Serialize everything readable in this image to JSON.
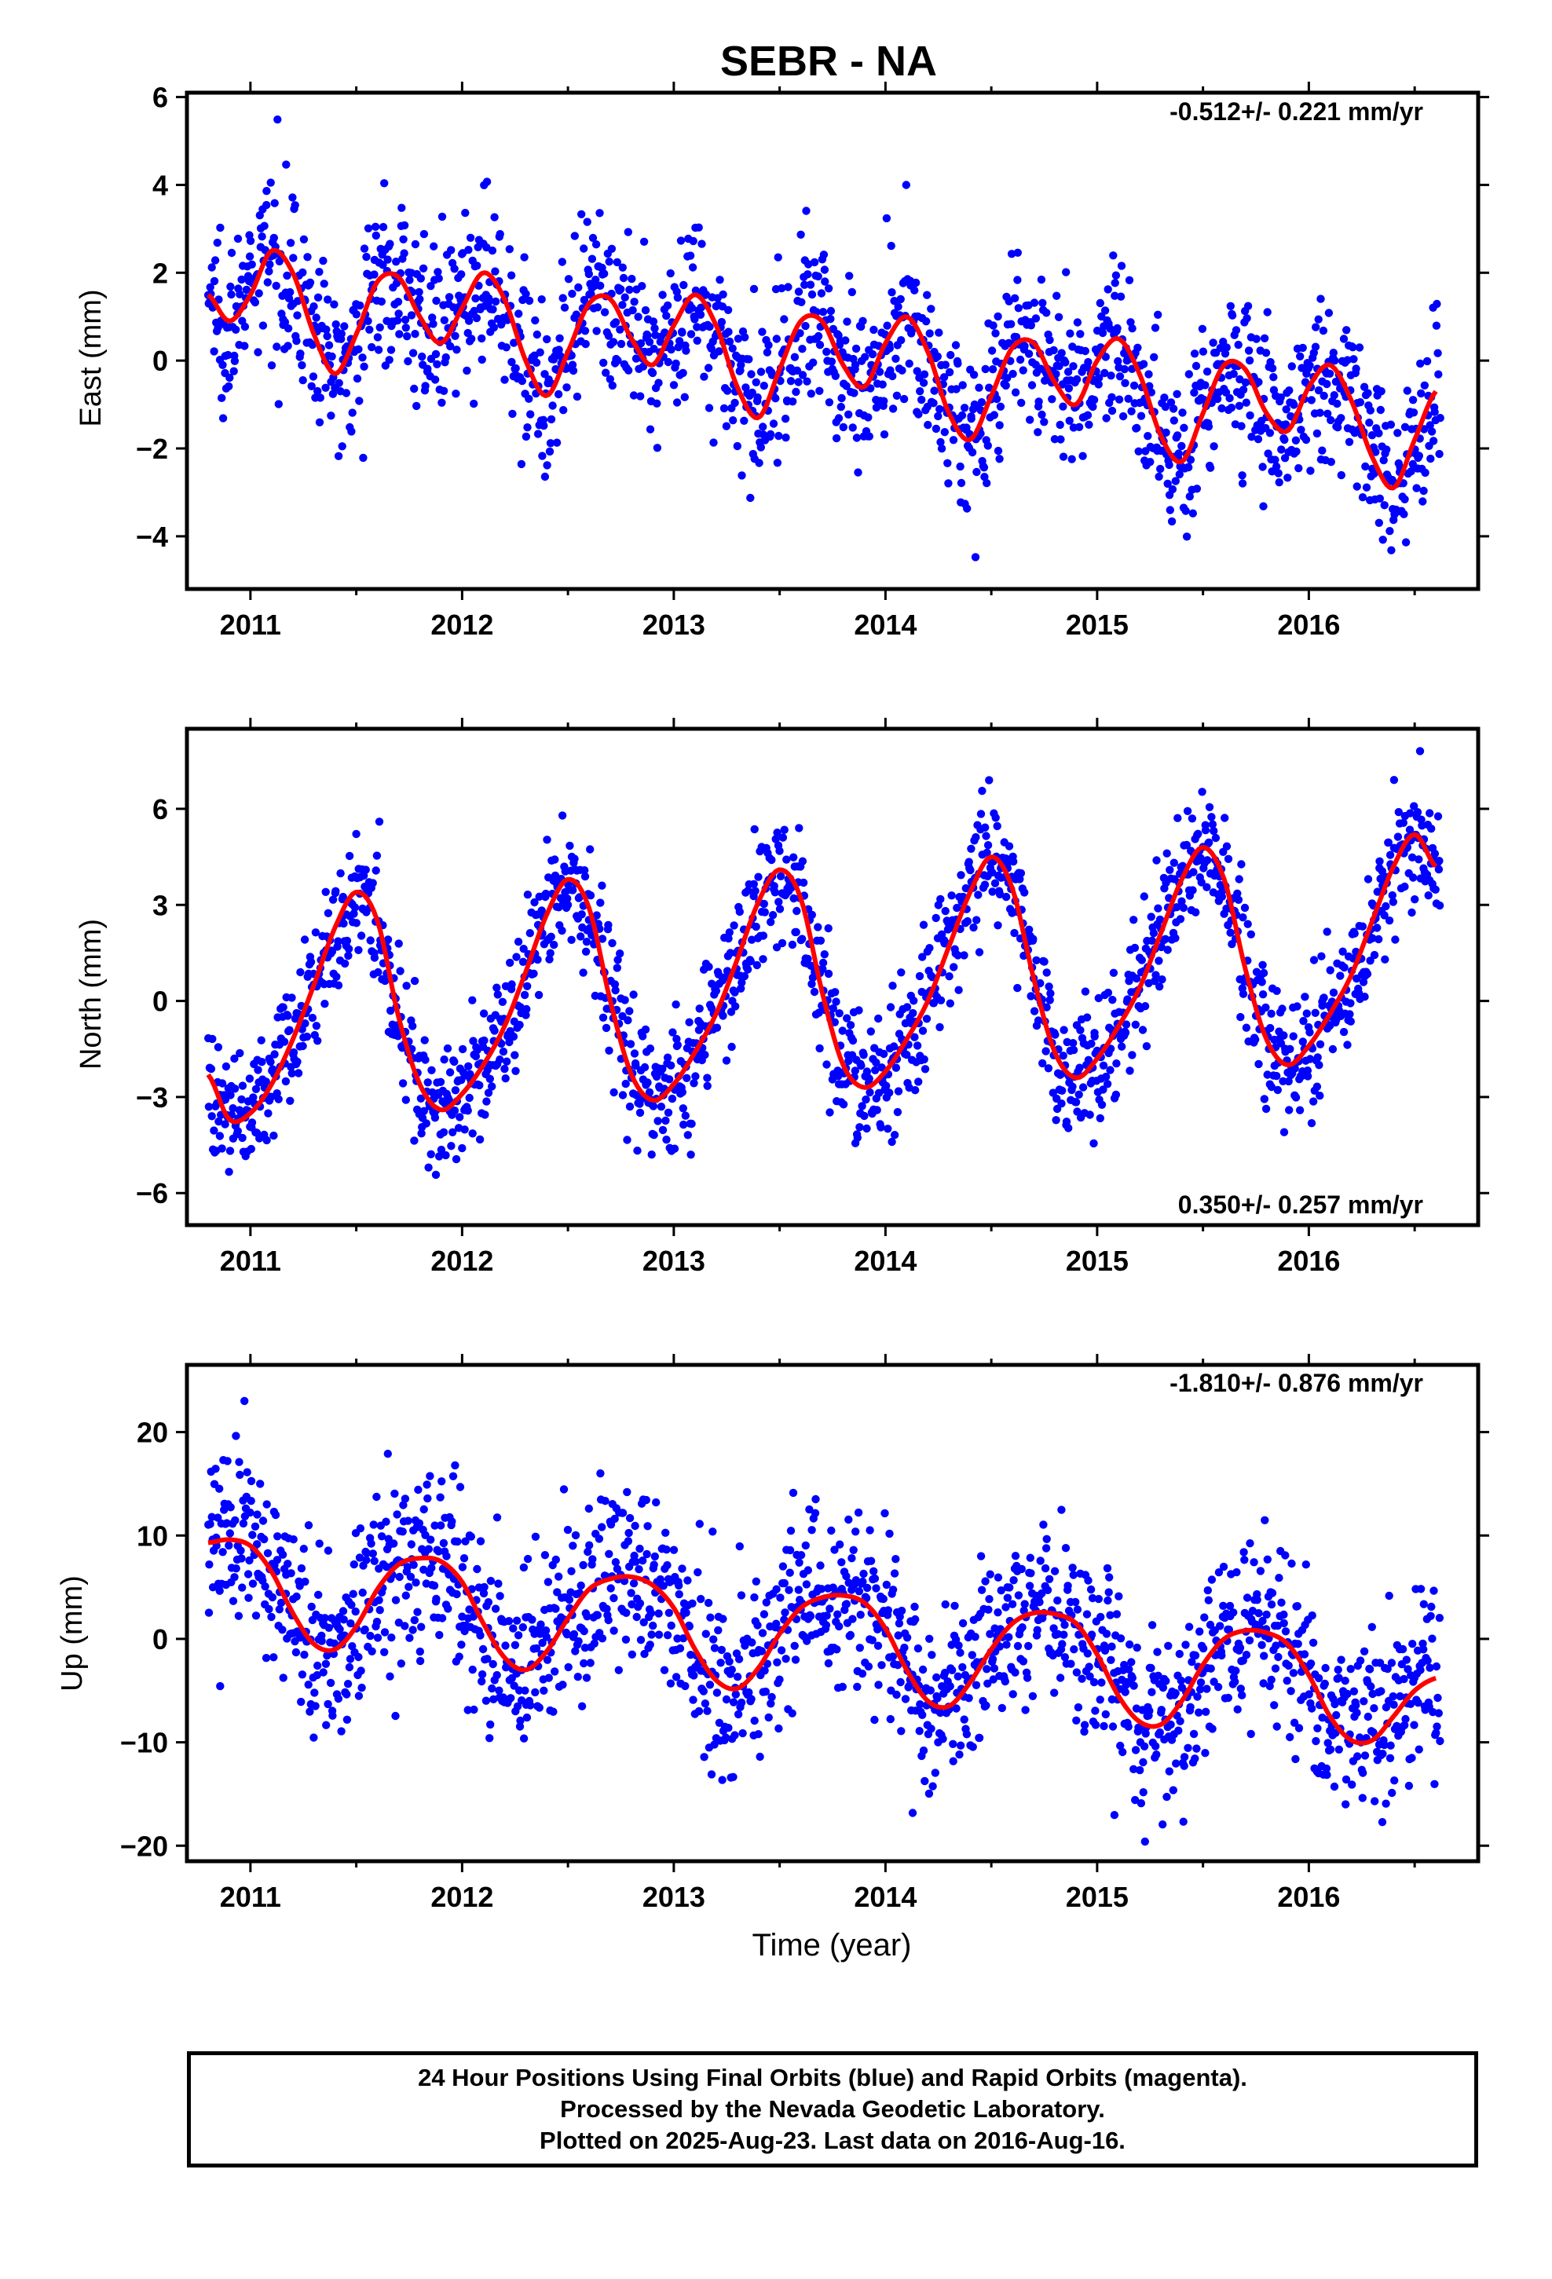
{
  "title": "SEBR - NA",
  "xlabel": "Time (year)",
  "footer": {
    "line1": "24 Hour Positions Using Final Orbits (blue) and Rapid Orbits (magenta).",
    "line2": "Processed by the Nevada Geodetic Laboratory.",
    "line3": "Plotted on 2025-Aug-23. Last data on 2016-Aug-16."
  },
  "colors": {
    "points": "#0000ff",
    "fit": "#ff0000",
    "axes": "#000000"
  },
  "chart_data": [
    {
      "type": "scatter",
      "component": "east",
      "ylabel": "East (mm)",
      "rate_label": "-0.512+/- 0.221 mm/yr",
      "rate_position": "top-right",
      "xlim": [
        2010.7,
        2016.8
      ],
      "ylim": [
        -5.2,
        6.1
      ],
      "x_ticks": [
        "2011",
        "2012",
        "2013",
        "2014",
        "2015",
        "2016"
      ],
      "y_ticks": [
        -4,
        -2,
        0,
        2,
        4,
        6
      ],
      "y_tick_labels": [
        "−4",
        "−2",
        "0",
        "2",
        "4",
        "6"
      ],
      "time_span": [
        2010.8,
        2016.62
      ],
      "fit_curve": {
        "x": [
          2010.8,
          2010.9,
          2011.0,
          2011.1,
          2011.2,
          2011.3,
          2011.4,
          2011.5,
          2011.6,
          2011.7,
          2011.8,
          2011.9,
          2012.0,
          2012.1,
          2012.2,
          2012.3,
          2012.4,
          2012.5,
          2012.6,
          2012.7,
          2012.8,
          2012.9,
          2013.0,
          2013.1,
          2013.2,
          2013.3,
          2013.4,
          2013.5,
          2013.6,
          2013.7,
          2013.8,
          2013.9,
          2014.0,
          2014.1,
          2014.2,
          2014.3,
          2014.4,
          2014.5,
          2014.6,
          2014.7,
          2014.8,
          2014.9,
          2015.0,
          2015.1,
          2015.2,
          2015.3,
          2015.4,
          2015.5,
          2015.6,
          2015.7,
          2015.8,
          2015.9,
          2016.0,
          2016.1,
          2016.2,
          2016.3,
          2016.4,
          2016.5,
          2016.6
        ],
        "y": [
          1.5,
          0.9,
          1.5,
          2.5,
          2.0,
          0.6,
          -0.3,
          0.6,
          1.8,
          1.9,
          1.0,
          0.4,
          1.2,
          2.0,
          1.4,
          0.0,
          -0.8,
          0.2,
          1.3,
          1.4,
          0.5,
          -0.1,
          0.8,
          1.5,
          0.8,
          -0.6,
          -1.3,
          -0.2,
          0.9,
          0.9,
          -0.1,
          -0.6,
          0.4,
          1.0,
          0.2,
          -1.2,
          -1.8,
          -0.8,
          0.3,
          0.4,
          -0.5,
          -1.0,
          0.0,
          0.5,
          -0.3,
          -1.7,
          -2.3,
          -1.2,
          -0.1,
          -0.2,
          -1.2,
          -1.6,
          -0.6,
          -0.1,
          -0.9,
          -2.2,
          -2.9,
          -1.8,
          -0.7
        ]
      },
      "noise_sd": 0.95,
      "n_points": 1700
    },
    {
      "type": "scatter",
      "component": "north",
      "ylabel": "North (mm)",
      "rate_label": "0.350+/- 0.257 mm/yr",
      "rate_position": "bottom-right",
      "xlim": [
        2010.7,
        2016.8
      ],
      "ylim": [
        -7.0,
        8.5
      ],
      "x_ticks": [
        "2011",
        "2012",
        "2013",
        "2014",
        "2015",
        "2016"
      ],
      "y_ticks": [
        -6,
        -3,
        0,
        3,
        6
      ],
      "y_tick_labels": [
        "−6",
        "−3",
        "0",
        "3",
        "6"
      ],
      "time_span": [
        2010.8,
        2016.62
      ],
      "fit_curve": {
        "x": [
          2010.8,
          2010.9,
          2011.0,
          2011.1,
          2011.2,
          2011.3,
          2011.4,
          2011.5,
          2011.6,
          2011.7,
          2011.8,
          2011.9,
          2012.0,
          2012.1,
          2012.2,
          2012.3,
          2012.4,
          2012.5,
          2012.6,
          2012.7,
          2012.8,
          2012.9,
          2013.0,
          2013.1,
          2013.2,
          2013.3,
          2013.4,
          2013.5,
          2013.6,
          2013.7,
          2013.8,
          2013.9,
          2014.0,
          2014.1,
          2014.2,
          2014.3,
          2014.4,
          2014.5,
          2014.6,
          2014.7,
          2014.8,
          2014.9,
          2015.0,
          2015.1,
          2015.2,
          2015.3,
          2015.4,
          2015.5,
          2015.6,
          2015.7,
          2015.8,
          2015.9,
          2016.0,
          2016.1,
          2016.2,
          2016.3,
          2016.4,
          2016.5,
          2016.6
        ],
        "y": [
          -2.3,
          -3.7,
          -3.5,
          -2.6,
          -1.2,
          0.5,
          2.3,
          3.4,
          2.5,
          -0.5,
          -2.6,
          -3.4,
          -2.9,
          -2.0,
          -0.8,
          0.9,
          2.7,
          3.8,
          2.9,
          0.0,
          -2.3,
          -3.1,
          -2.6,
          -1.6,
          -0.4,
          1.3,
          3.1,
          4.1,
          3.2,
          0.3,
          -2.0,
          -2.7,
          -2.2,
          -1.2,
          0.0,
          1.7,
          3.4,
          4.5,
          3.5,
          0.7,
          -1.6,
          -2.4,
          -1.8,
          -0.8,
          0.4,
          2.1,
          3.8,
          4.8,
          3.8,
          1.0,
          -1.2,
          -2.0,
          -1.4,
          -0.4,
          0.8,
          2.5,
          4.2,
          5.2,
          4.2
        ]
      },
      "noise_sd": 1.0,
      "n_points": 1700
    },
    {
      "type": "scatter",
      "component": "up",
      "ylabel": "Up (mm)",
      "rate_label": "-1.810+/- 0.876 mm/yr",
      "rate_position": "top-right",
      "xlim": [
        2010.7,
        2016.8
      ],
      "ylim": [
        -21.5,
        26.5
      ],
      "x_ticks": [
        "2011",
        "2012",
        "2013",
        "2014",
        "2015",
        "2016"
      ],
      "y_ticks": [
        -20,
        -10,
        0,
        10,
        20
      ],
      "y_tick_labels": [
        "−20",
        "−10",
        "0",
        "10",
        "20"
      ],
      "time_span": [
        2010.8,
        2016.62
      ],
      "fit_curve": {
        "x": [
          2010.8,
          2010.9,
          2011.0,
          2011.1,
          2011.2,
          2011.3,
          2011.4,
          2011.5,
          2011.6,
          2011.7,
          2011.8,
          2011.9,
          2012.0,
          2012.1,
          2012.2,
          2012.3,
          2012.4,
          2012.5,
          2012.6,
          2012.7,
          2012.8,
          2012.9,
          2013.0,
          2013.1,
          2013.2,
          2013.3,
          2013.4,
          2013.5,
          2013.6,
          2013.7,
          2013.8,
          2013.9,
          2014.0,
          2014.1,
          2014.2,
          2014.3,
          2014.4,
          2014.5,
          2014.6,
          2014.7,
          2014.8,
          2014.9,
          2015.0,
          2015.1,
          2015.2,
          2015.3,
          2015.4,
          2015.5,
          2015.6,
          2015.7,
          2015.8,
          2015.9,
          2016.0,
          2016.1,
          2016.2,
          2016.3,
          2016.4,
          2016.5,
          2016.6
        ],
        "y": [
          9.3,
          9.6,
          9.0,
          6.5,
          2.5,
          -0.5,
          -1.0,
          1.2,
          4.8,
          7.2,
          7.8,
          7.5,
          5.5,
          1.5,
          -1.8,
          -3.0,
          -1.2,
          2.0,
          4.8,
          5.8,
          6.0,
          5.2,
          3.0,
          -1.0,
          -4.0,
          -4.8,
          -2.8,
          0.5,
          3.0,
          4.0,
          4.2,
          3.5,
          1.0,
          -3.0,
          -6.0,
          -6.5,
          -4.2,
          -1.0,
          1.5,
          2.5,
          2.4,
          1.5,
          -1.5,
          -5.5,
          -8.0,
          -8.3,
          -6.0,
          -2.5,
          0.0,
          0.8,
          0.6,
          -0.5,
          -3.5,
          -7.5,
          -9.8,
          -9.8,
          -7.5,
          -5.0,
          -3.8
        ]
      },
      "noise_sd": 4.5,
      "n_points": 1700
    }
  ]
}
